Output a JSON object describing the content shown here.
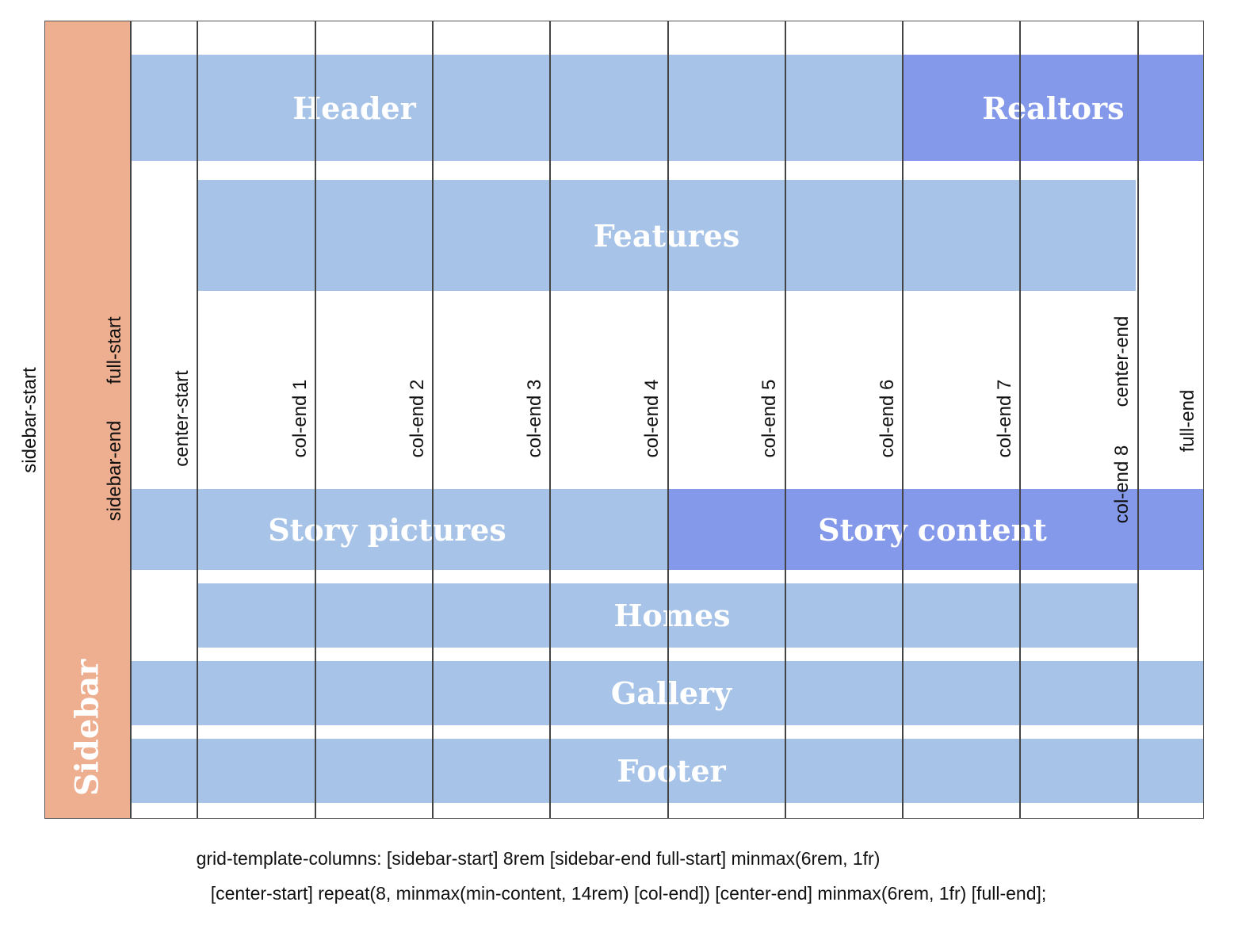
{
  "sidebar": {
    "label": "Sidebar"
  },
  "areas": {
    "header": "Header",
    "realtors": "Realtors",
    "features": "Features",
    "story_pictures": "Story pictures",
    "story_content": "Story content",
    "homes": "Homes",
    "gallery": "Gallery",
    "footer": "Footer"
  },
  "line_names": {
    "sidebar_start": "sidebar-start",
    "sidebar_end": "sidebar-end",
    "full_start": "full-start",
    "center_start": "center-start",
    "col_end_1": "col-end 1",
    "col_end_2": "col-end 2",
    "col_end_3": "col-end 3",
    "col_end_4": "col-end 4",
    "col_end_5": "col-end 5",
    "col_end_6": "col-end 6",
    "col_end_7": "col-end 7",
    "col_end_8": "col-end 8",
    "center_end": "center-end",
    "full_end": "full-end"
  },
  "code": {
    "line1": "grid-template-columns: [sidebar-start] 8rem [sidebar-end full-start] minmax(6rem, 1fr)",
    "line2": "[center-start] repeat(8, minmax(min-content, 14rem) [col-end]) [center-end] minmax(6rem, 1fr) [full-end];"
  },
  "colors": {
    "sidebar": "#EEAF90",
    "area_light": "#A7C4E8",
    "area_dark": "#8599EB",
    "grid_line": "#444444"
  }
}
